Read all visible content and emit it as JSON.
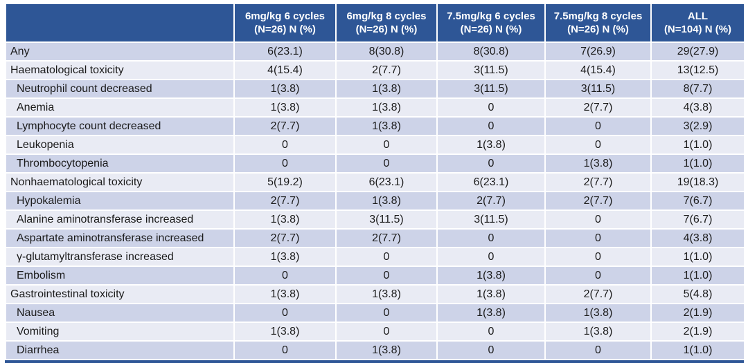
{
  "title": "Treatment-related grade 3 or higher adverse events table",
  "colors": {
    "header_bg": "#2E5696",
    "band_dark": "#CDD3E8",
    "band_light": "#E9EBF4",
    "text": "#1B1B1B",
    "header_text": "#FFFFFF"
  },
  "table": {
    "corner_label": "",
    "columns": [
      {
        "line1": "6mg/kg 6 cycles",
        "line2": "(N=26) N (%)"
      },
      {
        "line1": "6mg/kg 8 cycles",
        "line2": "(N=26) N (%)"
      },
      {
        "line1": "7.5mg/kg 6 cycles",
        "line2": "(N=26) N (%)"
      },
      {
        "line1": "7.5mg/kg 8 cycles",
        "line2": "(N=26) N (%)"
      },
      {
        "line1": "ALL",
        "line2": "(N=104) N (%)"
      }
    ],
    "rows": [
      {
        "label": "Any",
        "indent": false,
        "values": [
          "6(23.1)",
          "8(30.8)",
          "8(30.8)",
          "7(26.9)",
          "29(27.9)"
        ]
      },
      {
        "label": "Haematological toxicity",
        "indent": false,
        "values": [
          "4(15.4)",
          "2(7.7)",
          "3(11.5)",
          "4(15.4)",
          "13(12.5)"
        ]
      },
      {
        "label": "Neutrophil count decreased",
        "indent": true,
        "values": [
          "1(3.8)",
          "1(3.8)",
          "3(11.5)",
          "3(11.5)",
          "8(7.7)"
        ]
      },
      {
        "label": "Anemia",
        "indent": true,
        "values": [
          "1(3.8)",
          "1(3.8)",
          "0",
          "2(7.7)",
          "4(3.8)"
        ]
      },
      {
        "label": "Lymphocyte count decreased",
        "indent": true,
        "values": [
          "2(7.7)",
          "1(3.8)",
          "0",
          "0",
          "3(2.9)"
        ]
      },
      {
        "label": "Leukopenia",
        "indent": true,
        "values": [
          "0",
          "0",
          "1(3.8)",
          "0",
          "1(1.0)"
        ]
      },
      {
        "label": "Thrombocytopenia",
        "indent": true,
        "values": [
          "0",
          "0",
          "0",
          "1(3.8)",
          "1(1.0)"
        ]
      },
      {
        "label": "Nonhaematological toxicity",
        "indent": false,
        "values": [
          "5(19.2)",
          "6(23.1)",
          "6(23.1)",
          "2(7.7)",
          "19(18.3)"
        ]
      },
      {
        "label": "Hypokalemia",
        "indent": true,
        "values": [
          "2(7.7)",
          "1(3.8)",
          "2(7.7)",
          "2(7.7)",
          "7(6.7)"
        ]
      },
      {
        "label": "Alanine aminotransferase increased",
        "indent": true,
        "values": [
          "1(3.8)",
          "3(11.5)",
          "3(11.5)",
          "0",
          "7(6.7)"
        ]
      },
      {
        "label": "Aspartate aminotransferase increased",
        "indent": true,
        "values": [
          "2(7.7)",
          "2(7.7)",
          "0",
          "0",
          "4(3.8)"
        ]
      },
      {
        "label": "γ-glutamyltransferase increased",
        "indent": true,
        "values": [
          "1(3.8)",
          "0",
          "0",
          "0",
          "1(1.0)"
        ]
      },
      {
        "label": "Embolism",
        "indent": true,
        "values": [
          "0",
          "0",
          "1(3.8)",
          "0",
          "1(1.0)"
        ]
      },
      {
        "label": "Gastrointestinal toxicity",
        "indent": false,
        "values": [
          "1(3.8)",
          "1(3.8)",
          "1(3.8)",
          "2(7.7)",
          "5(4.8)"
        ]
      },
      {
        "label": "Nausea",
        "indent": true,
        "values": [
          "0",
          "0",
          "1(3.8)",
          "1(3.8)",
          "2(1.9)"
        ]
      },
      {
        "label": "Vomiting",
        "indent": true,
        "values": [
          "1(3.8)",
          "0",
          "0",
          "1(3.8)",
          "2(1.9)"
        ]
      },
      {
        "label": "Diarrhea",
        "indent": true,
        "values": [
          "0",
          "1(3.8)",
          "0",
          "0",
          "1(1.0)"
        ]
      }
    ]
  }
}
